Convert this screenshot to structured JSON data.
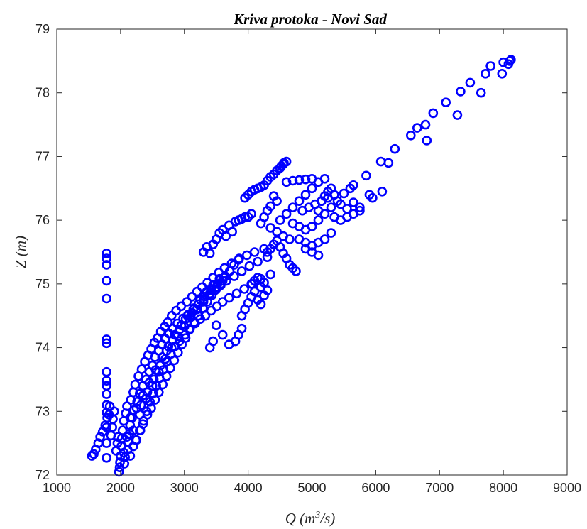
{
  "chart_data": {
    "type": "scatter",
    "title": "Kriva protoka - Novi Sad",
    "xlabel": {
      "prefix": "Q (m",
      "sup": "3",
      "suffix": "/s)"
    },
    "ylabel": "Z (m)",
    "xlim": [
      1000,
      9000
    ],
    "ylim": [
      72,
      79
    ],
    "xticks": [
      "1000",
      "2000",
      "3000",
      "4000",
      "5000",
      "6000",
      "7000",
      "8000",
      "9000"
    ],
    "yticks": [
      "72",
      "73",
      "74",
      "75",
      "76",
      "77",
      "78",
      "79"
    ],
    "grid": false,
    "marker": "circle",
    "color": "#0000ff",
    "points": [
      [
        1550,
        72.3
      ],
      [
        1580,
        72.33
      ],
      [
        1610,
        72.4
      ],
      [
        1650,
        72.5
      ],
      [
        1680,
        72.6
      ],
      [
        1720,
        72.68
      ],
      [
        1760,
        72.78
      ],
      [
        1790,
        72.9
      ],
      [
        1780,
        72.27
      ],
      [
        1780,
        72.5
      ],
      [
        1780,
        72.75
      ],
      [
        1780,
        72.98
      ],
      [
        1780,
        73.1
      ],
      [
        1780,
        73.27
      ],
      [
        1780,
        73.4
      ],
      [
        1780,
        73.48
      ],
      [
        1780,
        73.62
      ],
      [
        1780,
        74.07
      ],
      [
        1780,
        74.13
      ],
      [
        1780,
        74.77
      ],
      [
        1780,
        75.05
      ],
      [
        1780,
        75.3
      ],
      [
        1780,
        75.4
      ],
      [
        1780,
        75.48
      ],
      [
        1820,
        72.95
      ],
      [
        1830,
        73.08
      ],
      [
        1850,
        72.62
      ],
      [
        1870,
        72.75
      ],
      [
        1880,
        72.88
      ],
      [
        1900,
        73.0
      ],
      [
        1930,
        72.38
      ],
      [
        1950,
        72.5
      ],
      [
        1960,
        72.6
      ],
      [
        1975,
        72.05
      ],
      [
        1985,
        72.12
      ],
      [
        1990,
        72.2
      ],
      [
        2000,
        72.3
      ],
      [
        2010,
        72.45
      ],
      [
        2020,
        72.58
      ],
      [
        2030,
        72.7
      ],
      [
        2050,
        72.85
      ],
      [
        2060,
        72.18
      ],
      [
        2070,
        72.28
      ],
      [
        2080,
        72.97
      ],
      [
        2100,
        73.08
      ],
      [
        2110,
        72.4
      ],
      [
        2120,
        72.52
      ],
      [
        2140,
        72.65
      ],
      [
        2150,
        72.78
      ],
      [
        2160,
        73.18
      ],
      [
        2180,
        72.9
      ],
      [
        2200,
        73.3
      ],
      [
        2210,
        73.02
      ],
      [
        2230,
        73.42
      ],
      [
        2240,
        72.55
      ],
      [
        2260,
        73.15
      ],
      [
        2280,
        73.55
      ],
      [
        2300,
        73.28
      ],
      [
        2310,
        72.7
      ],
      [
        2330,
        73.66
      ],
      [
        2350,
        73.4
      ],
      [
        2360,
        72.85
      ],
      [
        2380,
        73.78
      ],
      [
        2400,
        73.5
      ],
      [
        2410,
        73.0
      ],
      [
        2430,
        73.88
      ],
      [
        2450,
        73.62
      ],
      [
        2460,
        73.15
      ],
      [
        2480,
        73.98
      ],
      [
        2500,
        73.72
      ],
      [
        2510,
        73.28
      ],
      [
        2530,
        74.08
      ],
      [
        2540,
        73.85
      ],
      [
        2560,
        73.4
      ],
      [
        2580,
        74.15
      ],
      [
        2600,
        73.95
      ],
      [
        2610,
        73.52
      ],
      [
        2630,
        74.25
      ],
      [
        2650,
        74.05
      ],
      [
        2670,
        73.65
      ],
      [
        2690,
        74.33
      ],
      [
        2700,
        74.14
      ],
      [
        2720,
        73.78
      ],
      [
        2740,
        74.4
      ],
      [
        2760,
        74.22
      ],
      [
        2790,
        73.9
      ],
      [
        2800,
        74.5
      ],
      [
        2820,
        74.3
      ],
      [
        2850,
        74.02
      ],
      [
        2870,
        74.58
      ],
      [
        2890,
        74.38
      ],
      [
        2920,
        74.1
      ],
      [
        2950,
        74.65
      ],
      [
        2980,
        74.46
      ],
      [
        3010,
        74.2
      ],
      [
        3040,
        74.72
      ],
      [
        3060,
        74.52
      ],
      [
        3090,
        74.3
      ],
      [
        3120,
        74.8
      ],
      [
        3140,
        74.6
      ],
      [
        3170,
        74.38
      ],
      [
        3200,
        74.88
      ],
      [
        3220,
        74.68
      ],
      [
        3250,
        74.45
      ],
      [
        3280,
        74.95
      ],
      [
        3300,
        74.75
      ],
      [
        3330,
        74.5
      ],
      [
        3360,
        75.02
      ],
      [
        3390,
        74.82
      ],
      [
        3420,
        74.58
      ],
      [
        3450,
        75.1
      ],
      [
        3480,
        74.9
      ],
      [
        3510,
        74.65
      ],
      [
        3540,
        75.18
      ],
      [
        3570,
        74.98
      ],
      [
        3600,
        74.72
      ],
      [
        3630,
        75.25
      ],
      [
        3660,
        75.05
      ],
      [
        3700,
        74.78
      ],
      [
        3740,
        75.32
      ],
      [
        3780,
        75.12
      ],
      [
        3820,
        74.85
      ],
      [
        3860,
        75.4
      ],
      [
        3900,
        75.2
      ],
      [
        3940,
        74.92
      ],
      [
        3980,
        75.45
      ],
      [
        4020,
        75.28
      ],
      [
        4060,
        75.0
      ],
      [
        4100,
        75.5
      ],
      [
        4150,
        75.35
      ],
      [
        4200,
        75.08
      ],
      [
        4250,
        75.55
      ],
      [
        4300,
        75.42
      ],
      [
        4350,
        75.15
      ],
      [
        2050,
        72.35
      ],
      [
        2100,
        72.6
      ],
      [
        2150,
        72.9
      ],
      [
        2200,
        72.7
      ],
      [
        2250,
        73.05
      ],
      [
        2300,
        72.95
      ],
      [
        2350,
        73.25
      ],
      [
        2400,
        73.2
      ],
      [
        2450,
        73.45
      ],
      [
        2500,
        73.4
      ],
      [
        2550,
        73.65
      ],
      [
        2600,
        73.62
      ],
      [
        2650,
        73.85
      ],
      [
        2700,
        73.82
      ],
      [
        2750,
        74.02
      ],
      [
        2800,
        74.0
      ],
      [
        2850,
        74.2
      ],
      [
        2900,
        74.18
      ],
      [
        2950,
        74.35
      ],
      [
        3000,
        74.33
      ],
      [
        3050,
        74.5
      ],
      [
        3100,
        74.48
      ],
      [
        3150,
        74.62
      ],
      [
        3200,
        74.6
      ],
      [
        3250,
        74.75
      ],
      [
        3300,
        74.72
      ],
      [
        3350,
        74.88
      ],
      [
        3400,
        74.85
      ],
      [
        3450,
        74.98
      ],
      [
        3500,
        74.95
      ],
      [
        3550,
        75.08
      ],
      [
        3600,
        75.05
      ],
      [
        2150,
        72.3
      ],
      [
        2200,
        72.45
      ],
      [
        2250,
        72.55
      ],
      [
        2300,
        72.7
      ],
      [
        2350,
        72.8
      ],
      [
        2420,
        72.95
      ],
      [
        2480,
        73.05
      ],
      [
        2540,
        73.18
      ],
      [
        2600,
        73.3
      ],
      [
        2660,
        73.42
      ],
      [
        2720,
        73.55
      ],
      [
        2780,
        73.68
      ],
      [
        2840,
        73.8
      ],
      [
        2900,
        73.92
      ],
      [
        2960,
        74.05
      ],
      [
        3020,
        74.15
      ],
      [
        3080,
        74.28
      ],
      [
        3150,
        74.4
      ],
      [
        3220,
        74.5
      ],
      [
        3290,
        74.62
      ],
      [
        3360,
        74.72
      ],
      [
        3430,
        74.82
      ],
      [
        3500,
        74.92
      ],
      [
        3570,
        75.0
      ],
      [
        3640,
        75.12
      ],
      [
        3710,
        75.2
      ],
      [
        3780,
        75.3
      ],
      [
        3850,
        75.38
      ],
      [
        2320,
        73.1
      ],
      [
        2420,
        73.3
      ],
      [
        2520,
        73.5
      ],
      [
        2620,
        73.72
      ],
      [
        2720,
        73.95
      ],
      [
        2820,
        74.12
      ],
      [
        2920,
        74.28
      ],
      [
        3020,
        74.45
      ],
      [
        3120,
        74.55
      ],
      [
        3220,
        74.68
      ],
      [
        3320,
        74.8
      ],
      [
        3420,
        74.9
      ],
      [
        3520,
        75.0
      ],
      [
        3620,
        75.1
      ],
      [
        3300,
        75.5
      ],
      [
        3350,
        75.58
      ],
      [
        3400,
        75.48
      ],
      [
        3450,
        75.62
      ],
      [
        3500,
        75.7
      ],
      [
        3550,
        75.8
      ],
      [
        3600,
        75.85
      ],
      [
        3650,
        75.75
      ],
      [
        3700,
        75.92
      ],
      [
        3750,
        75.82
      ],
      [
        3800,
        75.98
      ],
      [
        3850,
        76.0
      ],
      [
        3900,
        76.02
      ],
      [
        3950,
        76.05
      ],
      [
        4000,
        76.05
      ],
      [
        4050,
        76.1
      ],
      [
        3950,
        76.35
      ],
      [
        4000,
        76.4
      ],
      [
        4050,
        76.45
      ],
      [
        4100,
        76.48
      ],
      [
        4150,
        76.5
      ],
      [
        4200,
        76.52
      ],
      [
        4250,
        76.55
      ],
      [
        4300,
        76.62
      ],
      [
        4350,
        76.68
      ],
      [
        4400,
        76.72
      ],
      [
        4450,
        76.78
      ],
      [
        4500,
        76.82
      ],
      [
        4550,
        76.88
      ],
      [
        4600,
        76.92
      ],
      [
        4560,
        76.9
      ],
      [
        4520,
        76.85
      ],
      [
        4400,
        76.38
      ],
      [
        4450,
        76.3
      ],
      [
        4350,
        76.22
      ],
      [
        4300,
        76.15
      ],
      [
        4250,
        76.05
      ],
      [
        4200,
        75.95
      ],
      [
        4350,
        75.88
      ],
      [
        4450,
        75.82
      ],
      [
        4550,
        75.75
      ],
      [
        4650,
        75.7
      ],
      [
        4300,
        75.5
      ],
      [
        4350,
        75.55
      ],
      [
        4400,
        75.62
      ],
      [
        4450,
        75.68
      ],
      [
        4500,
        75.58
      ],
      [
        4550,
        75.48
      ],
      [
        4600,
        75.4
      ],
      [
        4650,
        75.3
      ],
      [
        4700,
        75.25
      ],
      [
        4750,
        75.2
      ],
      [
        4500,
        76.0
      ],
      [
        4600,
        76.1
      ],
      [
        4700,
        76.2
      ],
      [
        4800,
        76.3
      ],
      [
        4900,
        76.4
      ],
      [
        5000,
        76.5
      ],
      [
        5100,
        76.6
      ],
      [
        5200,
        76.65
      ],
      [
        4600,
        76.6
      ],
      [
        4700,
        76.62
      ],
      [
        4800,
        76.63
      ],
      [
        4900,
        76.64
      ],
      [
        5000,
        76.65
      ],
      [
        4700,
        75.95
      ],
      [
        4800,
        75.9
      ],
      [
        4900,
        75.85
      ],
      [
        5000,
        75.9
      ],
      [
        5100,
        76.0
      ],
      [
        5200,
        76.1
      ],
      [
        5300,
        76.2
      ],
      [
        5400,
        76.3
      ],
      [
        5500,
        76.42
      ],
      [
        5600,
        76.5
      ],
      [
        5650,
        76.55
      ],
      [
        4800,
        75.7
      ],
      [
        4900,
        75.65
      ],
      [
        5000,
        75.6
      ],
      [
        5100,
        75.65
      ],
      [
        5200,
        75.7
      ],
      [
        5300,
        75.8
      ],
      [
        4900,
        75.55
      ],
      [
        5000,
        75.5
      ],
      [
        5100,
        75.45
      ],
      [
        4850,
        76.15
      ],
      [
        4950,
        76.2
      ],
      [
        5050,
        76.25
      ],
      [
        5150,
        76.3
      ],
      [
        5250,
        76.35
      ],
      [
        5350,
        76.4
      ],
      [
        5450,
        76.25
      ],
      [
        5550,
        76.18
      ],
      [
        5650,
        76.28
      ],
      [
        5750,
        76.2
      ],
      [
        5300,
        76.5
      ],
      [
        5250,
        76.45
      ],
      [
        5200,
        76.38
      ],
      [
        5150,
        76.3
      ],
      [
        5100,
        76.15
      ],
      [
        5350,
        76.05
      ],
      [
        5450,
        76.0
      ],
      [
        5550,
        76.05
      ],
      [
        5650,
        76.1
      ],
      [
        5750,
        76.15
      ],
      [
        4050,
        75.0
      ],
      [
        4100,
        75.05
      ],
      [
        4150,
        75.1
      ],
      [
        4200,
        74.95
      ],
      [
        4250,
        75.02
      ],
      [
        3900,
        74.5
      ],
      [
        3950,
        74.6
      ],
      [
        4000,
        74.7
      ],
      [
        4050,
        74.8
      ],
      [
        4100,
        74.88
      ],
      [
        4150,
        74.75
      ],
      [
        4200,
        74.68
      ],
      [
        4250,
        74.82
      ],
      [
        4300,
        74.9
      ],
      [
        3850,
        74.2
      ],
      [
        3900,
        74.3
      ],
      [
        3800,
        74.1
      ],
      [
        3700,
        74.05
      ],
      [
        3600,
        74.2
      ],
      [
        3500,
        74.35
      ],
      [
        3450,
        74.1
      ],
      [
        3400,
        74.0
      ],
      [
        5850,
        76.7
      ],
      [
        5900,
        76.4
      ],
      [
        5950,
        76.35
      ],
      [
        6100,
        76.45
      ],
      [
        6080,
        76.92
      ],
      [
        6200,
        76.9
      ],
      [
        6300,
        77.12
      ],
      [
        6550,
        77.33
      ],
      [
        6650,
        77.45
      ],
      [
        6780,
        77.5
      ],
      [
        6800,
        77.25
      ],
      [
        6900,
        77.68
      ],
      [
        7100,
        77.85
      ],
      [
        7280,
        77.65
      ],
      [
        7330,
        78.02
      ],
      [
        7480,
        78.16
      ],
      [
        7650,
        78.0
      ],
      [
        7720,
        78.3
      ],
      [
        7800,
        78.42
      ],
      [
        7980,
        78.3
      ],
      [
        8000,
        78.48
      ],
      [
        8080,
        78.45
      ],
      [
        8100,
        78.5
      ],
      [
        8120,
        78.52
      ]
    ]
  }
}
